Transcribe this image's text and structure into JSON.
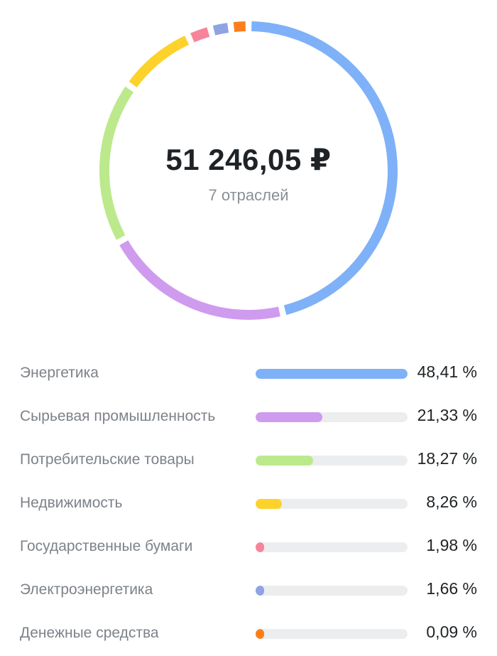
{
  "summary": {
    "total": "51 246,05 ₽",
    "sectors_count": "7 отраслей"
  },
  "chart_data": {
    "type": "pie",
    "donut": true,
    "categories": [
      "Энергетика",
      "Сырьевая промышленность",
      "Потребительские товары",
      "Недвижимость",
      "Государственные бумаги",
      "Электроэнергетика",
      "Денежные средства"
    ],
    "values": [
      48.41,
      21.33,
      18.27,
      8.26,
      1.98,
      1.66,
      0.09
    ],
    "labels": [
      "48,41 %",
      "21,33 %",
      "18,27 %",
      "8,26 %",
      "1,98 %",
      "1,66 %",
      "0,09 %"
    ],
    "colors": [
      "#7eb1f7",
      "#cf9bee",
      "#bce98c",
      "#fdd22a",
      "#f7849a",
      "#8fa3e4",
      "#fb7e1c"
    ],
    "track_color": "#ebedef"
  }
}
